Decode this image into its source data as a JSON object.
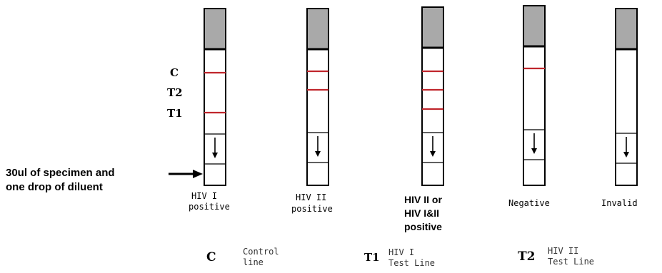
{
  "colors": {
    "test_line": "#c0262c",
    "strip_head": "#a9a9a9",
    "frame": "#000000"
  },
  "line_labels": {
    "c": "C",
    "t2": "T2",
    "t1": "T1"
  },
  "specimen_note": {
    "line1": "30ul  of  specimen and",
    "line2": "one drop of diluent"
  },
  "strips": [
    {
      "caption": [
        "HIV I",
        "positive"
      ],
      "caption_style": "mono",
      "lines": [
        "C",
        "T1"
      ]
    },
    {
      "caption": [
        "HIV II",
        "positive"
      ],
      "caption_style": "mono",
      "lines": [
        "C",
        "T2"
      ]
    },
    {
      "caption": [
        "HIV II or",
        "HIV I&II",
        "positive"
      ],
      "caption_style": "bold",
      "lines": [
        "C",
        "T2",
        "T1"
      ]
    },
    {
      "caption": [
        "Negative"
      ],
      "caption_style": "mono",
      "lines": [
        "C"
      ]
    },
    {
      "caption": [
        "Invalid"
      ],
      "caption_style": "mono",
      "lines": []
    }
  ],
  "legend": [
    {
      "letter": "C",
      "text": [
        "Control",
        "line"
      ]
    },
    {
      "letter": "T1",
      "text": [
        "HIV I",
        "Test Line"
      ]
    },
    {
      "letter": "T2",
      "text": [
        "HIV II",
        "Test Line"
      ]
    }
  ]
}
